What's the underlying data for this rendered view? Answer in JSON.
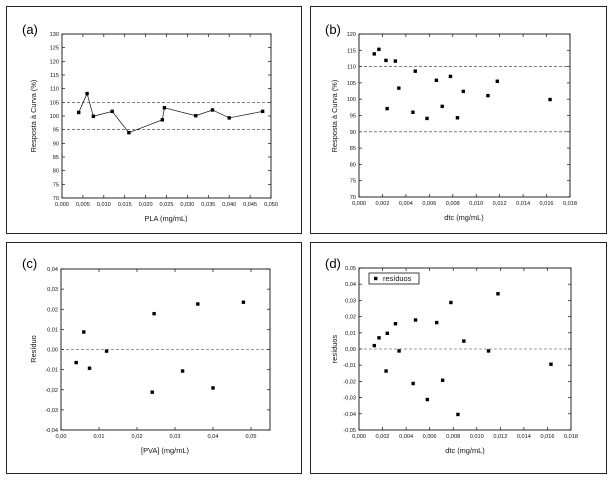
{
  "chart_data": [
    {
      "panel_label": "(a)",
      "type": "line",
      "xlabel": "PLA (mg/mL)",
      "ylabel": "Resposta à Curva (%)",
      "xlim": [
        0.0,
        0.05
      ],
      "ylim": [
        70,
        130
      ],
      "xticks": [
        0.0,
        0.005,
        0.01,
        0.015,
        0.02,
        0.025,
        0.03,
        0.035,
        0.04,
        0.045,
        0.05
      ],
      "xtick_labels": [
        "0,000",
        "0,005",
        "0,010",
        "0,015",
        "0,020",
        "0,025",
        "0,030",
        "0,035",
        "0,040",
        "0,045",
        "0,050"
      ],
      "yticks": [
        70,
        75,
        80,
        85,
        90,
        95,
        100,
        105,
        110,
        115,
        120,
        125,
        130
      ],
      "ytick_labels": [
        "70",
        "75",
        "80",
        "85",
        "90",
        "95",
        "100",
        "105",
        "110",
        "115",
        "120",
        "125",
        "130"
      ],
      "series": [
        {
          "x": [
            0.004,
            0.006,
            0.0075,
            0.012,
            0.016,
            0.024,
            0.0245,
            0.032,
            0.036,
            0.04,
            0.048
          ],
          "y": [
            101.3,
            108.2,
            99.9,
            101.7,
            93.9,
            98.6,
            103.0,
            100.1,
            102.2,
            99.3,
            101.7
          ]
        }
      ],
      "hlines": [
        95,
        105
      ],
      "grid": false
    },
    {
      "panel_label": "(b)",
      "type": "scatter",
      "xlabel": "dtc (mg/mL)",
      "ylabel": "Resposta à Curva (%)",
      "xlim": [
        0.0,
        0.018
      ],
      "ylim": [
        70,
        120
      ],
      "xticks": [
        0.0,
        0.002,
        0.004,
        0.006,
        0.008,
        0.01,
        0.012,
        0.014,
        0.016,
        0.018
      ],
      "xtick_labels": [
        "0,000",
        "0,002",
        "0,004",
        "0,006",
        "0,008",
        "0,010",
        "0,012",
        "0,014",
        "0,016",
        "0,018"
      ],
      "yticks": [
        70,
        75,
        80,
        85,
        90,
        95,
        100,
        105,
        110,
        115,
        120
      ],
      "ytick_labels": [
        "70",
        "75",
        "80",
        "85",
        "90",
        "95",
        "100",
        "105",
        "110",
        "115",
        "120"
      ],
      "series": [
        {
          "x": [
            0.0013,
            0.0017,
            0.0023,
            0.0024,
            0.0031,
            0.0034,
            0.0046,
            0.0048,
            0.0058,
            0.0066,
            0.0071,
            0.0078,
            0.0084,
            0.0089,
            0.011,
            0.0118,
            0.0163
          ],
          "y": [
            113.9,
            115.3,
            111.9,
            97.1,
            111.7,
            103.4,
            96.0,
            108.6,
            94.1,
            105.8,
            97.8,
            107.0,
            94.3,
            102.4,
            101.1,
            105.5,
            99.9
          ]
        }
      ],
      "hlines": [
        90,
        110
      ],
      "grid": false
    },
    {
      "panel_label": "(c)",
      "type": "scatter",
      "xlabel": "[PVA] (mg/mL)",
      "ylabel": "Resíduo",
      "xlim": [
        0.0,
        0.055
      ],
      "ylim": [
        -0.04,
        0.04
      ],
      "xticks": [
        0.0,
        0.01,
        0.02,
        0.03,
        0.04,
        0.05
      ],
      "xtick_labels": [
        "0,00",
        "0,01",
        "0,02",
        "0,03",
        "0,04",
        "0,05"
      ],
      "yticks": [
        -0.04,
        -0.03,
        -0.02,
        -0.01,
        0.0,
        0.01,
        0.02,
        0.03,
        0.04
      ],
      "ytick_labels": [
        "-0,04",
        "-0,03",
        "-0,02",
        "-0,01",
        "0,00",
        "0,01",
        "0,02",
        "0,03",
        "0,04"
      ],
      "series": [
        {
          "x": [
            0.004,
            0.006,
            0.0075,
            0.012,
            0.024,
            0.0245,
            0.032,
            0.036,
            0.04,
            0.048
          ],
          "y": [
            -0.0065,
            0.0087,
            -0.0093,
            -0.0008,
            -0.0212,
            0.0178,
            -0.0107,
            0.0226,
            -0.0191,
            0.0235
          ]
        }
      ],
      "hlines": [
        0.0
      ],
      "grid": false
    },
    {
      "panel_label": "(d)",
      "type": "scatter",
      "xlabel": "dtc (mg/mL)",
      "ylabel": "resíduos",
      "xlim": [
        0.0,
        0.018
      ],
      "ylim": [
        -0.05,
        0.05
      ],
      "xticks": [
        0.0,
        0.002,
        0.004,
        0.006,
        0.008,
        0.01,
        0.012,
        0.014,
        0.016,
        0.018
      ],
      "xtick_labels": [
        "0,000",
        "0,002",
        "0,004",
        "0,006",
        "0,008",
        "0,010",
        "0,012",
        "0,014",
        "0,016",
        "0,018"
      ],
      "yticks": [
        -0.05,
        -0.04,
        -0.03,
        -0.02,
        -0.01,
        0.0,
        0.01,
        0.02,
        0.03,
        0.04,
        0.05
      ],
      "ytick_labels": [
        "-0,05",
        "-0,04",
        "-0,03",
        "-0,02",
        "-0,01",
        "0,00",
        "0,01",
        "0,02",
        "0,03",
        "0,04",
        "0,05"
      ],
      "series": [
        {
          "name": "resíduos",
          "x": [
            0.0013,
            0.0017,
            0.0023,
            0.0024,
            0.0031,
            0.0034,
            0.0046,
            0.0048,
            0.0058,
            0.0066,
            0.0071,
            0.0078,
            0.0084,
            0.0089,
            0.011,
            0.0118,
            0.0163
          ],
          "y": [
            0.0021,
            0.0069,
            -0.0136,
            0.0097,
            0.0156,
            -0.0012,
            -0.0213,
            0.0179,
            -0.0312,
            0.0163,
            -0.0193,
            0.0287,
            -0.0404,
            0.0049,
            -0.0012,
            0.0341,
            -0.0094
          ]
        }
      ],
      "hlines": [
        0.0
      ],
      "legend": "top-left",
      "grid": false
    }
  ]
}
